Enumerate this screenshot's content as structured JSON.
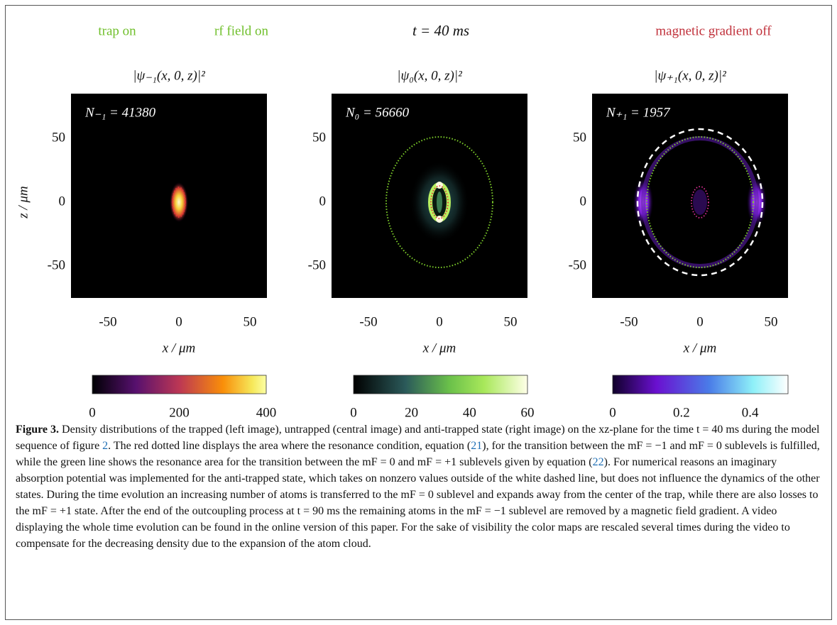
{
  "header": {
    "labels": [
      "trap on",
      "rf field on",
      "t = 40 ms",
      "magnetic gradient off"
    ]
  },
  "panels": [
    {
      "title": "|ψ₋₁(x, 0, z)|²",
      "count_label": "N₋₁ = 41380",
      "xticks": [
        -50,
        0,
        50
      ],
      "yticks": [
        50,
        0,
        -50
      ],
      "xlabel": "x / μm",
      "ylabel": "z / μm",
      "colorbar_ticks": [
        0,
        200,
        400
      ]
    },
    {
      "title": "|ψ₀(x, 0, z)|²",
      "count_label": "N₀ = 56660",
      "xticks": [
        -50,
        0,
        50
      ],
      "yticks": [
        50,
        0,
        -50
      ],
      "xlabel": "x / μm",
      "colorbar_ticks": [
        0,
        20,
        40,
        60
      ]
    },
    {
      "title": "|ψ₊₁(x, 0, z)|²",
      "count_label": "N₊₁ = 1957",
      "xticks": [
        -50,
        0,
        50
      ],
      "yticks": [
        50,
        0,
        -50
      ],
      "xlabel": "x / μm",
      "colorbar_ticks": [
        0,
        0.2,
        0.4
      ]
    }
  ],
  "caption": {
    "label": "Figure 3.",
    "body": [
      "Density distributions of the trapped (left image), untrapped (central image) and anti-trapped state (right image) on the xz-plane for the time t = 40 ms during the model sequence of figure ",
      "2",
      ". The red dotted line displays the area where the resonance condition, equation (",
      "21",
      "), for the transition between the mF = −1 and mF = 0 sublevels is fulfilled, while the green line shows the resonance area for the transition between the mF = 0 and mF = +1 sublevels given by equation (",
      "22",
      "). For numerical reasons an imaginary absorption potential was implemented for the anti-trapped state, which takes on nonzero values outside of the white dashed line, but does not influence the dynamics of the other states. During the time evolution an increasing number of atoms is transferred to the mF = 0 sublevel and expands away from the center of the trap, while there are also losses to the mF = +1 state. After the end of the outcoupling process at t = 90 ms the remaining atoms in the mF = −1 sublevel are removed by a magnetic field gradient. A video displaying the whole time evolution can be found in the online version of this paper. For the sake of visibility the color maps are rescaled several times during the video to compensate for the decreasing density due to the expansion of the atom cloud."
    ]
  }
}
